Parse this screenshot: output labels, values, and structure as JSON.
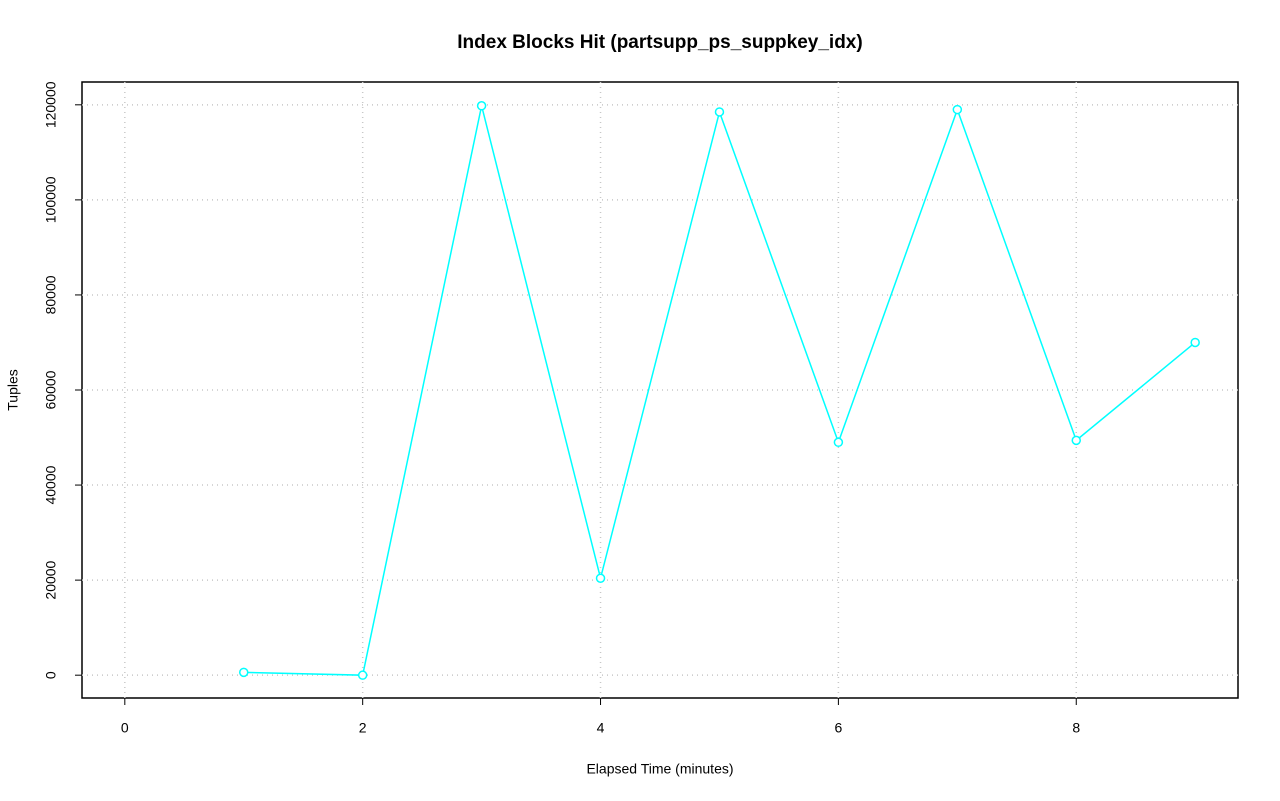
{
  "chart_data": {
    "type": "line",
    "title": "Index Blocks Hit (partsupp_ps_suppkey_idx)",
    "x_label": "Elapsed Time (minutes)",
    "y_label": "Tuples",
    "x": [
      1,
      2,
      3,
      4,
      5,
      6,
      7,
      8,
      9
    ],
    "series": [
      {
        "name": "partsupp_ps_suppkey_idx",
        "color": "#00ffff",
        "values": [
          600,
          0,
          119800,
          20400,
          118500,
          49000,
          119000,
          49400,
          70000
        ]
      }
    ],
    "xlim": [
      -0.36,
      9.36
    ],
    "xticks": [
      0,
      2,
      4,
      6,
      8
    ],
    "ylim": [
      -4800,
      124800
    ],
    "yticks": [
      0,
      20000,
      40000,
      60000,
      80000,
      100000,
      120000
    ],
    "grid": true
  }
}
